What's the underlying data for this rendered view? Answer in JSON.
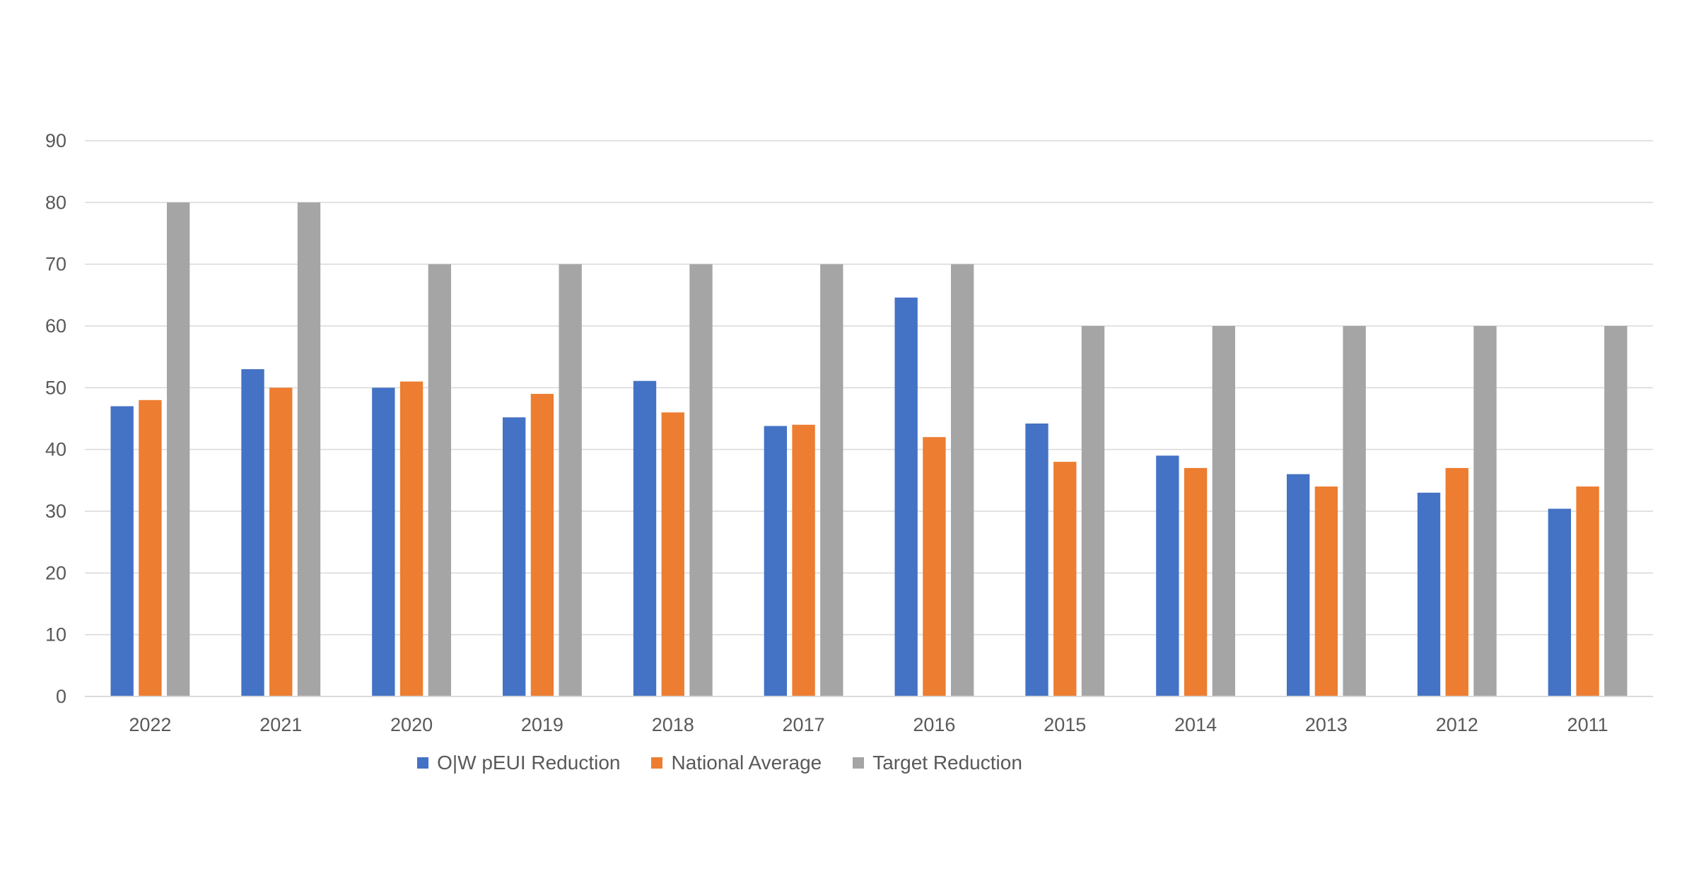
{
  "chart_data": {
    "type": "bar",
    "categories": [
      "2022",
      "2021",
      "2020",
      "2019",
      "2018",
      "2017",
      "2016",
      "2015",
      "2014",
      "2013",
      "2012",
      "2011"
    ],
    "series": [
      {
        "name": "O|W pEUI Reduction",
        "color": "#4472c4",
        "values": [
          47,
          53,
          50,
          45.2,
          51.1,
          43.8,
          64.6,
          44.2,
          39,
          36,
          33,
          30.4
        ]
      },
      {
        "name": "National Average",
        "color": "#ed7d31",
        "values": [
          48,
          50,
          51,
          49,
          46,
          44,
          42,
          38,
          37,
          34,
          37,
          34
        ]
      },
      {
        "name": "Target Reduction",
        "color": "#a5a5a5",
        "values": [
          80,
          80,
          70,
          70,
          70,
          70,
          70,
          60,
          60,
          60,
          60,
          60
        ]
      }
    ],
    "ylim": [
      0,
      90
    ],
    "yticks": [
      "0",
      "10",
      "20",
      "30",
      "40",
      "50",
      "60",
      "70",
      "80",
      "90"
    ],
    "grid": true,
    "legend_position": "bottom",
    "title": "",
    "xlabel": "",
    "ylabel": ""
  }
}
